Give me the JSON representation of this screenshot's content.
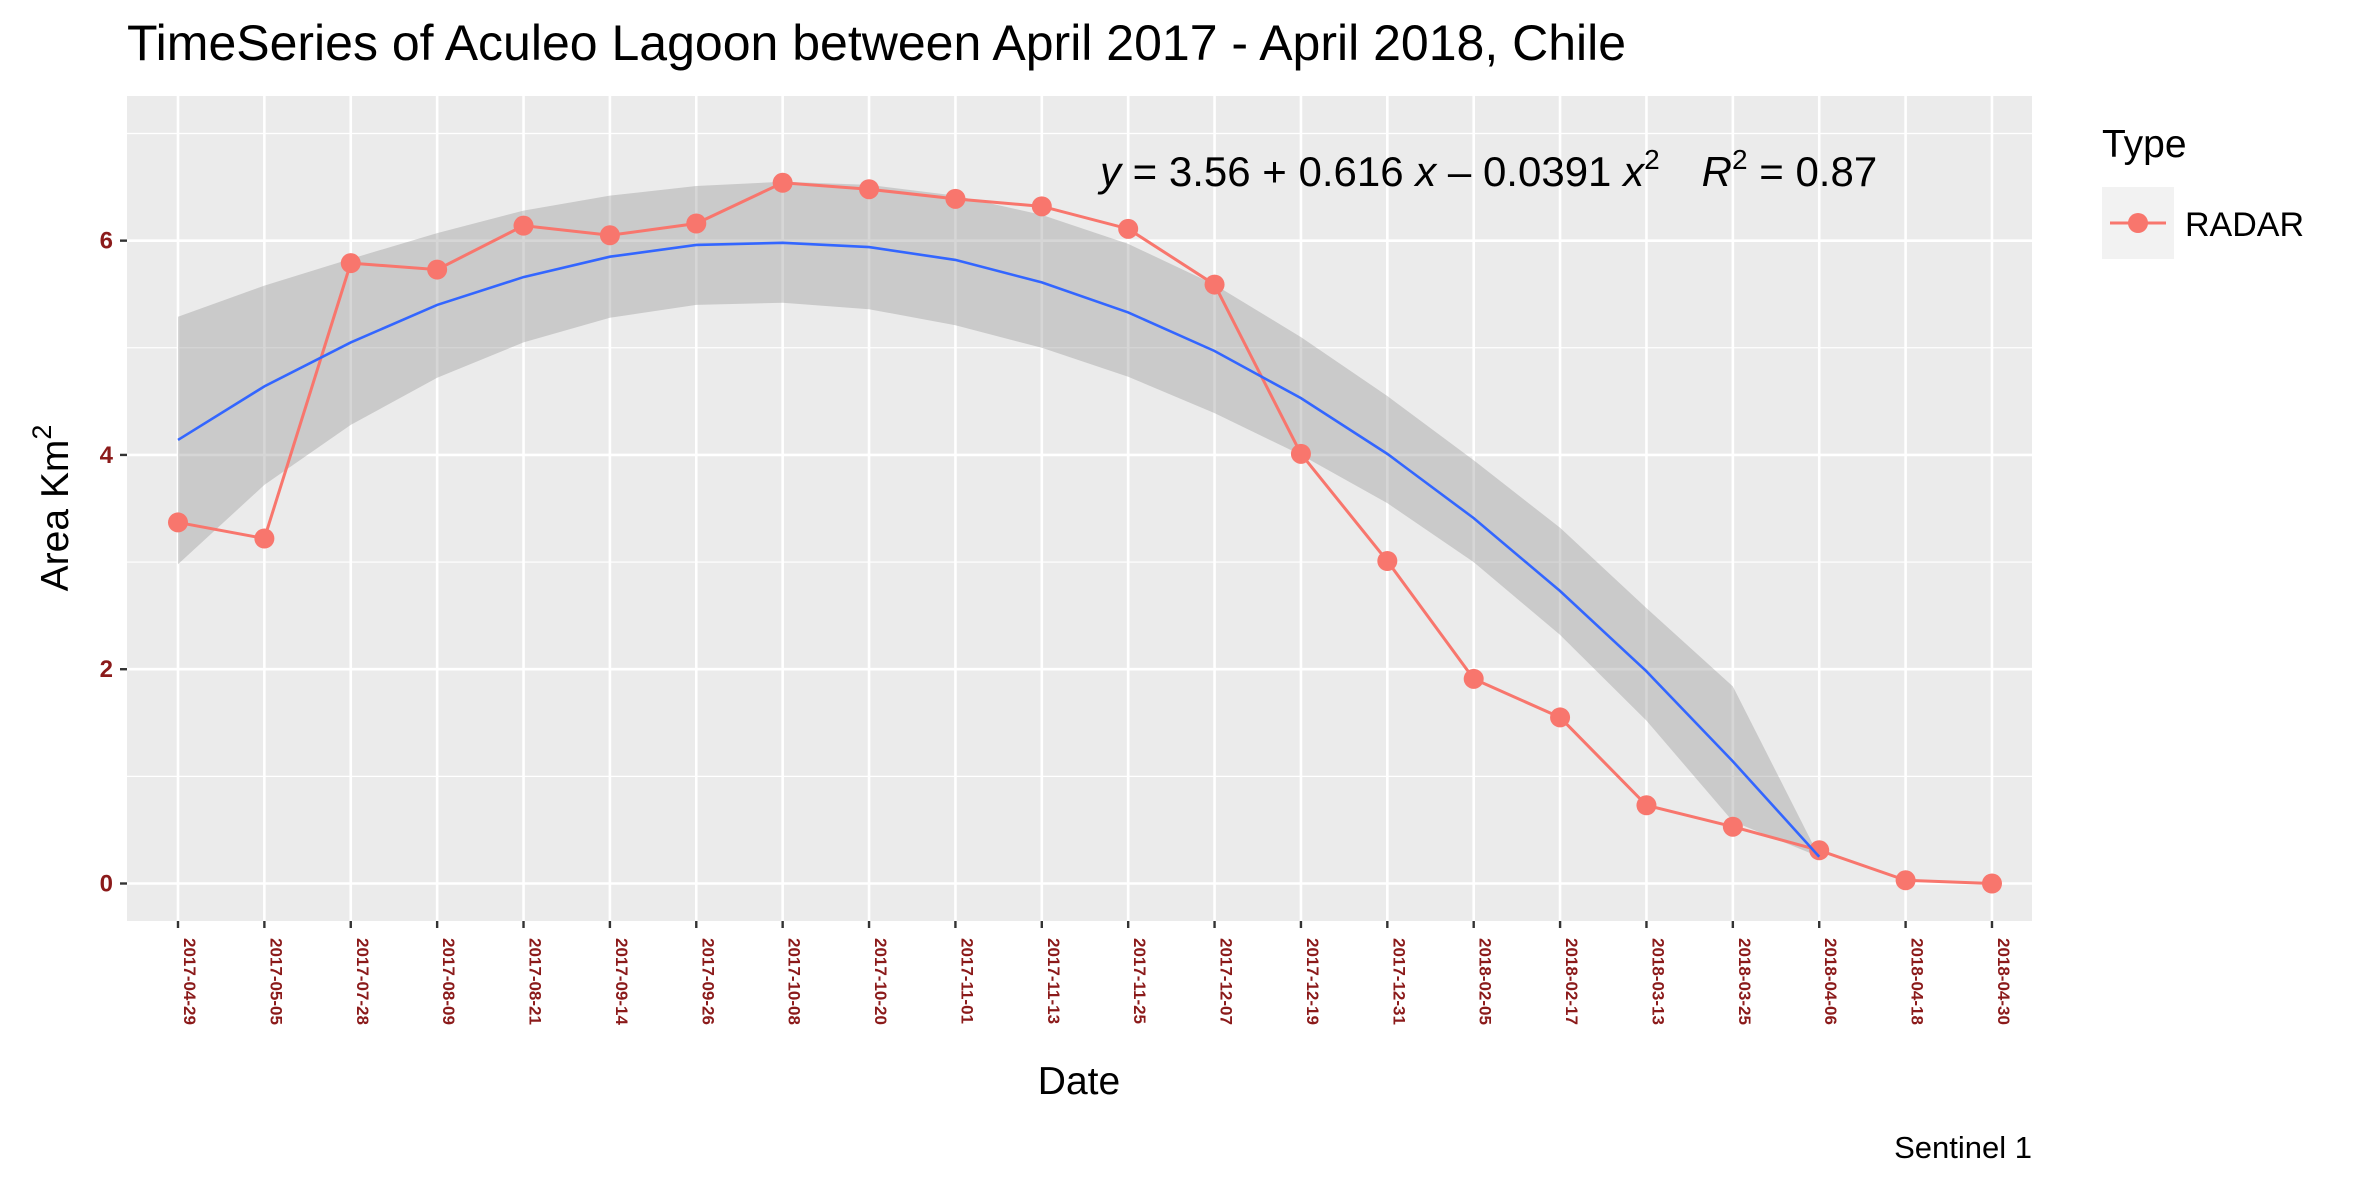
{
  "chart_data": {
    "type": "line",
    "title": "TimeSeries of Aculeo Lagoon between April 2017 - April 2018, Chile",
    "xlabel": "Date",
    "ylabel": "Area Km",
    "ylabel_superscript": "2",
    "caption": "Sentinel 1",
    "ylim": [
      -0.35,
      7.35
    ],
    "yticks": [
      0,
      2,
      4,
      6
    ],
    "grid": true,
    "legend": {
      "title": "Type",
      "position": "right",
      "entries": [
        "RADAR"
      ]
    },
    "categories": [
      "2017-04-29",
      "2017-05-05",
      "2017-07-28",
      "2017-08-09",
      "2017-08-21",
      "2017-09-14",
      "2017-09-26",
      "2017-10-08",
      "2017-10-20",
      "2017-11-01",
      "2017-11-13",
      "2017-11-25",
      "2017-12-07",
      "2017-12-19",
      "2017-12-31",
      "2018-02-05",
      "2018-02-17",
      "2018-03-13",
      "2018-03-25",
      "2018-04-06",
      "2018-04-18",
      "2018-04-30"
    ],
    "series": [
      {
        "name": "RADAR",
        "color": "#F8766D",
        "values": [
          3.37,
          3.22,
          5.79,
          5.73,
          6.14,
          6.05,
          6.16,
          6.54,
          6.48,
          6.39,
          6.32,
          6.11,
          5.59,
          4.01,
          3.01,
          1.91,
          1.55,
          0.73,
          0.53,
          0.31,
          0.03,
          0.0
        ]
      }
    ],
    "fit": {
      "color": "#3366FF",
      "band_color": "#999999",
      "x": [
        1,
        2,
        3,
        4,
        5,
        6,
        7,
        8,
        9,
        10,
        11,
        12,
        13,
        14,
        15,
        16,
        17,
        18,
        19,
        20
      ],
      "values": [
        4.14,
        4.64,
        5.05,
        5.4,
        5.66,
        5.85,
        5.96,
        5.98,
        5.94,
        5.82,
        5.61,
        5.33,
        4.97,
        4.53,
        4.01,
        3.41,
        2.73,
        1.98,
        1.14,
        0.25
      ],
      "lower": [
        2.98,
        3.72,
        4.28,
        4.72,
        5.05,
        5.28,
        5.4,
        5.42,
        5.36,
        5.21,
        5.0,
        4.73,
        4.39,
        4.0,
        3.55,
        3.0,
        2.32,
        1.52,
        0.58,
        0.25
      ],
      "upper": [
        5.29,
        5.58,
        5.83,
        6.07,
        6.28,
        6.42,
        6.51,
        6.55,
        6.52,
        6.42,
        6.24,
        5.97,
        5.59,
        5.1,
        4.55,
        3.95,
        3.32,
        2.57,
        1.84,
        0.25
      ],
      "equation": {
        "y": "y",
        "eq": " = 3.56 + 0.616 ",
        "x1": "x",
        "minus": " – 0.0391 ",
        "x2": "x",
        "exp": "2",
        "r": "R",
        "r_exp": "2",
        "r_val": " = 0.87"
      }
    }
  }
}
